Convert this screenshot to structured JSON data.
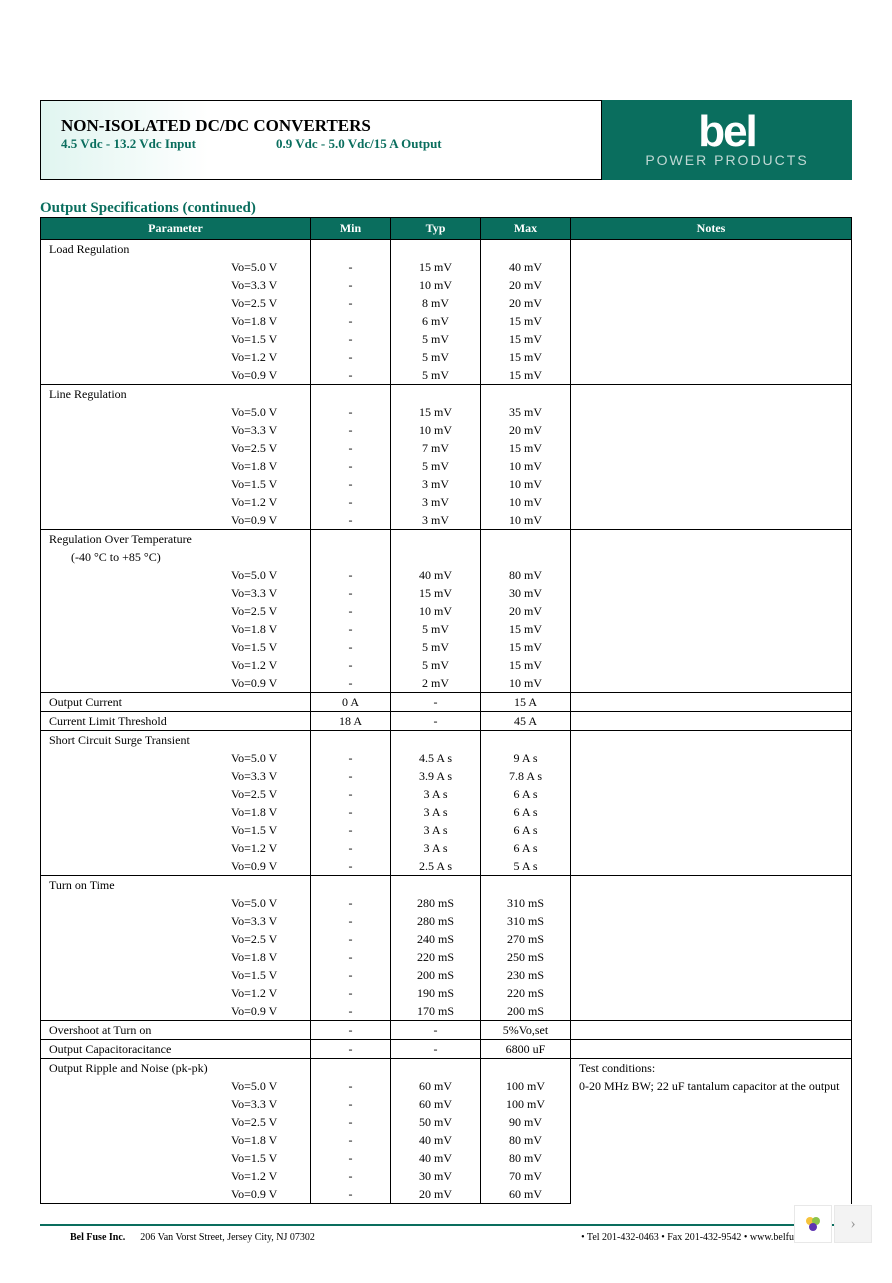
{
  "header": {
    "title": "NON-ISOLATED DC/DC CONVERTERS",
    "subtitle_left": "4.5 Vdc - 13.2 Vdc Input",
    "subtitle_right": "0.9 Vdc - 5.0 Vdc/15 A Output",
    "logo_text": "bel",
    "logo_sub": "POWER PRODUCTS",
    "brand_bg": "#0a6e5e"
  },
  "section": {
    "title": "Output Specifications (continued)"
  },
  "columns": {
    "param": "Parameter",
    "min": "Min",
    "typ": "Typ",
    "max": "Max",
    "notes": "Notes"
  },
  "vo_labels": [
    "Vo=5.0 V",
    "Vo=3.3 V",
    "Vo=2.5 V",
    "Vo=1.8 V",
    "Vo=1.5 V",
    "Vo=1.2 V",
    "Vo=0.9 V"
  ],
  "groups": {
    "load_reg": {
      "name": "Load Regulation",
      "min": [
        "-",
        "-",
        "-",
        "-",
        "-",
        "-",
        "-"
      ],
      "typ": [
        "15 mV",
        "10 mV",
        "8 mV",
        "6 mV",
        "5 mV",
        "5 mV",
        "5 mV"
      ],
      "max": [
        "40 mV",
        "20 mV",
        "20 mV",
        "15 mV",
        "15 mV",
        "15 mV",
        "15 mV"
      ]
    },
    "line_reg": {
      "name": "Line Regulation",
      "min": [
        "-",
        "-",
        "-",
        "-",
        "-",
        "-",
        "-"
      ],
      "typ": [
        "15 mV",
        "10 mV",
        "7 mV",
        "5 mV",
        "3 mV",
        "3 mV",
        "3 mV"
      ],
      "max": [
        "35 mV",
        "20 mV",
        "15 mV",
        "10 mV",
        "10 mV",
        "10 mV",
        "10 mV"
      ]
    },
    "reg_temp": {
      "name": "Regulation Over Temperature",
      "sub": "(-40 °C to +85 °C)",
      "min": [
        "-",
        "-",
        "-",
        "-",
        "-",
        "-",
        "-"
      ],
      "typ": [
        "40 mV",
        "15 mV",
        "10 mV",
        "5 mV",
        "5 mV",
        "5 mV",
        "2 mV"
      ],
      "max": [
        "80 mV",
        "30 mV",
        "20 mV",
        "15 mV",
        "15 mV",
        "15 mV",
        "10 mV"
      ]
    },
    "out_current": {
      "name": "Output Current",
      "min": "0 A",
      "typ": "-",
      "max": "15 A"
    },
    "cur_limit": {
      "name": "Current Limit Threshold",
      "min": "18 A",
      "typ": "-",
      "max": "45 A"
    },
    "short_circuit": {
      "name": "Short Circuit Surge Transient",
      "min": [
        "-",
        "-",
        "-",
        "-",
        "-",
        "-",
        "-"
      ],
      "typ": [
        "4.5 A  s",
        "3.9 A  s",
        "3 A  s",
        "3 A  s",
        "3 A  s",
        "3 A  s",
        "2.5 A  s"
      ],
      "max": [
        "9 A  s",
        "7.8 A  s",
        "6 A  s",
        "6 A  s",
        "6 A  s",
        "6 A  s",
        "5 A  s"
      ]
    },
    "turn_on": {
      "name": "Turn on Time",
      "min": [
        "-",
        "-",
        "-",
        "-",
        "-",
        "-",
        "-"
      ],
      "typ": [
        "280 mS",
        "280 mS",
        "240 mS",
        "220 mS",
        "200 mS",
        "190 mS",
        "170 mS"
      ],
      "max": [
        "310 mS",
        "310 mS",
        "270 mS",
        "250 mS",
        "230 mS",
        "220 mS",
        "200 mS"
      ]
    },
    "overshoot": {
      "name": "Overshoot at Turn on",
      "min": "-",
      "typ": "-",
      "max": "5%Vo,set"
    },
    "out_cap": {
      "name": "Output Capacitoracitance",
      "min": "-",
      "typ": "-",
      "max": "6800 uF"
    },
    "ripple": {
      "name": "Output Ripple and Noise (pk-pk)",
      "min": [
        "-",
        "-",
        "-",
        "-",
        "-",
        "-",
        "-"
      ],
      "typ": [
        "60 mV",
        "60 mV",
        "50 mV",
        "40 mV",
        "40 mV",
        "30 mV",
        "20 mV"
      ],
      "max": [
        "100 mV",
        "100 mV",
        "90 mV",
        "80 mV",
        "80 mV",
        "70 mV",
        "60 mV"
      ],
      "notes": "Test conditions:\n0-20 MHz BW; 22 uF tantalum capacitor at the output"
    }
  },
  "footer": {
    "company": "Bel Fuse Inc.",
    "address": "206 Van Vorst Street, Jersey City, NJ 07302",
    "contact": "• Tel 201-432-0463 • Fax 201-432-9542 • www.belfuse.com"
  },
  "style": {
    "header_bg": "#0a6e5e",
    "accent": "#0a6e5e",
    "text": "#000000",
    "font_body": 12,
    "font_title": 17
  }
}
